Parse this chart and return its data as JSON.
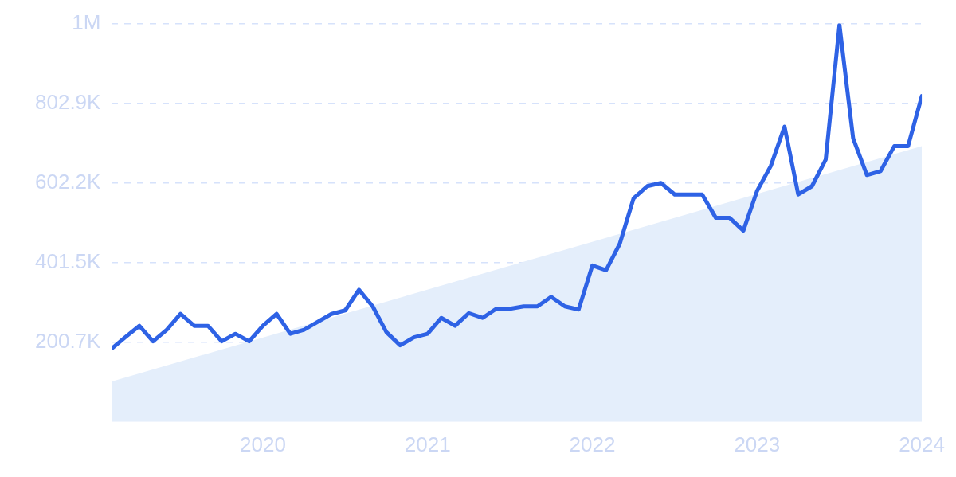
{
  "chart_data": {
    "type": "line",
    "x": [
      "2019-02",
      "2019-03",
      "2019-04",
      "2019-05",
      "2019-06",
      "2019-07",
      "2019-08",
      "2019-09",
      "2019-10",
      "2019-11",
      "2019-12",
      "2020-01",
      "2020-02",
      "2020-03",
      "2020-04",
      "2020-05",
      "2020-06",
      "2020-07",
      "2020-08",
      "2020-09",
      "2020-10",
      "2020-11",
      "2020-12",
      "2021-01",
      "2021-02",
      "2021-03",
      "2021-04",
      "2021-05",
      "2021-06",
      "2021-07",
      "2021-08",
      "2021-09",
      "2021-10",
      "2021-11",
      "2021-12",
      "2022-01",
      "2022-02",
      "2022-03",
      "2022-04",
      "2022-05",
      "2022-06",
      "2022-07",
      "2022-08",
      "2022-09",
      "2022-10",
      "2022-11",
      "2022-12",
      "2023-01",
      "2023-02",
      "2023-03",
      "2023-04",
      "2023-05",
      "2023-06",
      "2023-07",
      "2023-08",
      "2023-09",
      "2023-10",
      "2023-11",
      "2023-12",
      "2024-01"
    ],
    "series": [
      {
        "type": "area",
        "color": "#e4eefb",
        "x": [
          "2019-02",
          "2024-01"
        ],
        "values": [
          102000,
          695000
        ]
      },
      {
        "type": "line",
        "color": "#2e62e5",
        "values": [
          185000,
          214000,
          242000,
          203000,
          232000,
          272000,
          242000,
          242000,
          203000,
          222000,
          203000,
          242000,
          272000,
          222000,
          232000,
          252000,
          272000,
          281000,
          333000,
          291000,
          226000,
          193000,
          213000,
          222000,
          262000,
          242000,
          274000,
          262000,
          285000,
          285000,
          291000,
          291000,
          315000,
          291000,
          283000,
          394000,
          382000,
          449000,
          563000,
          594000,
          602000,
          573000,
          573000,
          573000,
          514000,
          514000,
          482000,
          582000,
          645000,
          744000,
          573000,
          594000,
          661000,
          1000000,
          714000,
          622000,
          632000,
          695000,
          695000,
          821000
        ]
      }
    ],
    "xlim": [
      "2019-02",
      "2024-01"
    ],
    "xticks": [
      {
        "value": "2020-01",
        "label": "2020"
      },
      {
        "value": "2021-01",
        "label": "2021"
      },
      {
        "value": "2022-01",
        "label": "2022"
      },
      {
        "value": "2023-01",
        "label": "2023"
      },
      {
        "value": "2024-01",
        "label": "2024"
      }
    ],
    "ylim": [
      0,
      1003600
    ],
    "yticks": [
      {
        "value": 200700,
        "label": "200.7K"
      },
      {
        "value": 401500,
        "label": "401.5K"
      },
      {
        "value": 602200,
        "label": "602.2K"
      },
      {
        "value": 802900,
        "label": "802.9K"
      },
      {
        "value": 1003600,
        "label": "1M"
      }
    ],
    "grid": "y",
    "marker": "none"
  }
}
